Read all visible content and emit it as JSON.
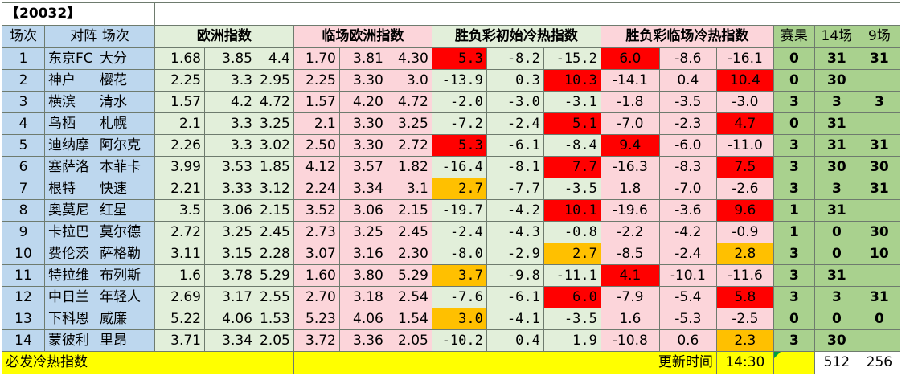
{
  "sheet": {
    "title": "【20032】",
    "headers": {
      "no": "场次",
      "match": "对阵 场次",
      "euro": "欧洲指数",
      "live_euro": "临场欧洲指数",
      "init_index": "胜负彩初始冷热指数",
      "live_index": "胜负彩临场冷热指数",
      "result": "赛果",
      "g14": "14场",
      "g9": "9场"
    },
    "rows": [
      {
        "no": "1",
        "home": "东京FC",
        "away": "大分",
        "euro": [
          "1.68",
          "3.85",
          "4.4"
        ],
        "live": [
          "1.70",
          "3.81",
          "4.30"
        ],
        "init": [
          "5.3",
          "-8.2",
          "-15.2"
        ],
        "initc": [
          "red",
          "lgreen",
          "lgreen"
        ],
        "idx": [
          "6.0",
          "-8.6",
          "-16.1"
        ],
        "idxc": [
          "red",
          "pink",
          "pink"
        ],
        "result": "0",
        "g14": "31",
        "g9": "31"
      },
      {
        "no": "2",
        "home": "神户",
        "away": "樱花",
        "euro": [
          "2.25",
          "3.3",
          "2.95"
        ],
        "live": [
          "2.25",
          "3.30",
          "3.0"
        ],
        "init": [
          "-13.9",
          "0.3",
          "10.3"
        ],
        "initc": [
          "lgreen",
          "lgreen",
          "red"
        ],
        "idx": [
          "-14.1",
          "0.4",
          "10.4"
        ],
        "idxc": [
          "pink",
          "pink",
          "red"
        ],
        "result": "0",
        "g14": "30",
        "g9": ""
      },
      {
        "no": "3",
        "home": "横滨",
        "away": "清水",
        "euro": [
          "1.57",
          "4.2",
          "4.72"
        ],
        "live": [
          "1.57",
          "4.20",
          "4.72"
        ],
        "init": [
          "-2.0",
          "-3.0",
          "-3.1"
        ],
        "initc": [
          "lgreen",
          "lgreen",
          "lgreen"
        ],
        "idx": [
          "-1.8",
          "-3.5",
          "-3.0"
        ],
        "idxc": [
          "pink",
          "pink",
          "pink"
        ],
        "result": "3",
        "g14": "3",
        "g9": "3"
      },
      {
        "no": "4",
        "home": "鸟栖",
        "away": "札幌",
        "euro": [
          "2.1",
          "3.3",
          "3.25"
        ],
        "live": [
          "2.1",
          "3.30",
          "3.25"
        ],
        "init": [
          "-7.2",
          "-2.4",
          "5.1"
        ],
        "initc": [
          "lgreen",
          "lgreen",
          "red"
        ],
        "idx": [
          "-7.0",
          "-2.3",
          "4.7"
        ],
        "idxc": [
          "pink",
          "pink",
          "red"
        ],
        "result": "0",
        "g14": "31",
        "g9": ""
      },
      {
        "no": "5",
        "home": "迪纳摩",
        "away": "阿尔克",
        "euro": [
          "2.26",
          "3.3",
          "3.02"
        ],
        "live": [
          "2.50",
          "3.30",
          "2.72"
        ],
        "init": [
          "5.3",
          "-6.1",
          "-8.4"
        ],
        "initc": [
          "red",
          "lgreen",
          "lgreen"
        ],
        "idx": [
          "9.4",
          "-6.0",
          "-11.0"
        ],
        "idxc": [
          "red",
          "pink",
          "pink"
        ],
        "result": "3",
        "g14": "31",
        "g9": "31"
      },
      {
        "no": "6",
        "home": "塞萨洛",
        "away": "本菲卡",
        "euro": [
          "3.99",
          "3.53",
          "1.85"
        ],
        "live": [
          "4.12",
          "3.57",
          "1.82"
        ],
        "init": [
          "-16.4",
          "-8.1",
          "7.7"
        ],
        "initc": [
          "lgreen",
          "lgreen",
          "red"
        ],
        "idx": [
          "-16.3",
          "-8.3",
          "7.5"
        ],
        "idxc": [
          "pink",
          "pink",
          "red"
        ],
        "result": "3",
        "g14": "30",
        "g9": "30"
      },
      {
        "no": "7",
        "home": "根特",
        "away": "快速",
        "euro": [
          "2.21",
          "3.33",
          "3.12"
        ],
        "live": [
          "2.24",
          "3.34",
          "3.1"
        ],
        "init": [
          "2.7",
          "-7.7",
          "-3.5"
        ],
        "initc": [
          "orange",
          "lgreen",
          "lgreen"
        ],
        "idx": [
          "1.8",
          "-7.0",
          "-2.6"
        ],
        "idxc": [
          "pink",
          "pink",
          "pink"
        ],
        "result": "3",
        "g14": "3",
        "g9": "31"
      },
      {
        "no": "8",
        "home": "奥莫尼",
        "away": "红星",
        "euro": [
          "3.5",
          "3.06",
          "2.15"
        ],
        "live": [
          "3.52",
          "3.06",
          "2.15"
        ],
        "init": [
          "-19.7",
          "-4.2",
          "10.1"
        ],
        "initc": [
          "lgreen",
          "lgreen",
          "red"
        ],
        "idx": [
          "-19.6",
          "-3.6",
          "9.6"
        ],
        "idxc": [
          "pink",
          "pink",
          "red"
        ],
        "result": "1",
        "g14": "31",
        "g9": ""
      },
      {
        "no": "9",
        "home": "卡拉巴",
        "away": "莫尔德",
        "euro": [
          "2.72",
          "3.25",
          "2.45"
        ],
        "live": [
          "2.73",
          "3.25",
          "2.45"
        ],
        "init": [
          "-2.4",
          "-4.3",
          "-0.8"
        ],
        "initc": [
          "lgreen",
          "lgreen",
          "lgreen"
        ],
        "idx": [
          "-2.2",
          "-4.2",
          "-0.9"
        ],
        "idxc": [
          "pink",
          "pink",
          "pink"
        ],
        "result": "1",
        "g14": "0",
        "g9": "30"
      },
      {
        "no": "10",
        "home": "费伦茨",
        "away": "萨格勒",
        "euro": [
          "3.11",
          "3.15",
          "2.28"
        ],
        "live": [
          "3.07",
          "3.16",
          "2.30"
        ],
        "init": [
          "-8.0",
          "-2.9",
          "2.7"
        ],
        "initc": [
          "lgreen",
          "lgreen",
          "orange"
        ],
        "idx": [
          "-8.5",
          "-2.4",
          "2.8"
        ],
        "idxc": [
          "pink",
          "pink",
          "orange"
        ],
        "result": "3",
        "g14": "0",
        "g9": "10"
      },
      {
        "no": "11",
        "home": "特拉维",
        "away": "布列斯",
        "euro": [
          "1.6",
          "3.78",
          "5.29"
        ],
        "live": [
          "1.60",
          "3.80",
          "5.29"
        ],
        "init": [
          "3.7",
          "-9.8",
          "-11.1"
        ],
        "initc": [
          "orange",
          "lgreen",
          "lgreen"
        ],
        "idx": [
          "4.1",
          "-10.1",
          "-11.6"
        ],
        "idxc": [
          "red",
          "pink",
          "pink"
        ],
        "result": "3",
        "g14": "31",
        "g9": ""
      },
      {
        "no": "12",
        "home": "中日兰",
        "away": "年轻人",
        "euro": [
          "2.69",
          "3.17",
          "2.55"
        ],
        "live": [
          "2.70",
          "3.18",
          "2.54"
        ],
        "init": [
          "-7.6",
          "-6.1",
          "6.0"
        ],
        "initc": [
          "lgreen",
          "lgreen",
          "red"
        ],
        "idx": [
          "-7.9",
          "-5.4",
          "5.8"
        ],
        "idxc": [
          "pink",
          "pink",
          "red"
        ],
        "result": "3",
        "g14": "3",
        "g9": "31"
      },
      {
        "no": "13",
        "home": "下科恩",
        "away": "威廉",
        "euro": [
          "5.22",
          "4.06",
          "1.53"
        ],
        "live": [
          "5.23",
          "4.06",
          "1.54"
        ],
        "init": [
          "3.0",
          "-4.1",
          "-3.5"
        ],
        "initc": [
          "orange",
          "lgreen",
          "lgreen"
        ],
        "idx": [
          "1.6",
          "-5.3",
          "-2.5"
        ],
        "idxc": [
          "pink",
          "pink",
          "pink"
        ],
        "result": "0",
        "g14": "0",
        "g9": "0"
      },
      {
        "no": "14",
        "home": "蒙彼利",
        "away": "里昂",
        "euro": [
          "3.71",
          "3.34",
          "2.05"
        ],
        "live": [
          "3.72",
          "3.36",
          "2.05"
        ],
        "init": [
          "-10.2",
          "0.4",
          "1.9"
        ],
        "initc": [
          "lgreen",
          "lgreen",
          "lgreen"
        ],
        "idx": [
          "-10.8",
          "0.6",
          "2.3"
        ],
        "idxc": [
          "pink",
          "pink",
          "orange"
        ],
        "result": "3",
        "g14": "30",
        "g9": ""
      }
    ],
    "footer": {
      "label": "必发冷热指数",
      "update_label": "更新时间",
      "time": "14:30",
      "count14": "512",
      "count9": "256"
    },
    "colors": {
      "blue": "#bdd7ee",
      "light_green": "#e2efda",
      "pink": "#fcd5da",
      "green": "#a9d18e",
      "yellow": "#ffff00",
      "red": "#ff0000",
      "orange": "#ffc000"
    }
  }
}
